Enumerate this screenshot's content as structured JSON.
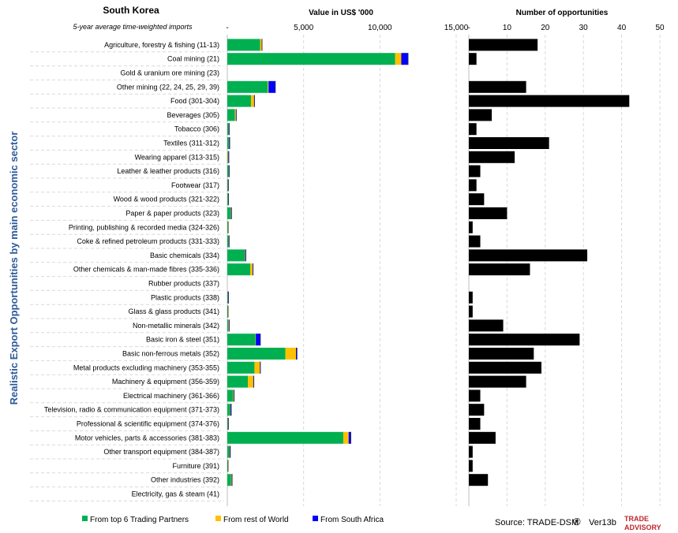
{
  "header": {
    "country": "South Korea",
    "subtitle": "5-year average time-weighted imports",
    "value_axis_title": "Value in US$ '000",
    "count_axis_title": "Number of opportunities",
    "y_axis_title": "Realistic Export Opportunities by main economic sector"
  },
  "legend": {
    "top6": "From top 6 Trading Partners",
    "row": "From rest of World",
    "sa": "From South Africa"
  },
  "footer": {
    "source": "Source: TRADE-DSM",
    "reg": "®",
    "version": "Ver13b",
    "logo_line1": "TRADE",
    "logo_line2": "ADVISORY"
  },
  "colors": {
    "top6": "#00b050",
    "row": "#ffc000",
    "sa": "#0000ff",
    "count": "#000000",
    "ylabel": "#2e5b9a",
    "logo_red": "#c0262d",
    "logo_grey": "#8c8c8c"
  },
  "chart_data": [
    {
      "type": "bar",
      "orientation": "horizontal",
      "stacked": true,
      "xlabel": "Value in US$ '000",
      "xlim": [
        0,
        15000
      ],
      "x_ticks": [
        "-",
        "5,000",
        "10,000",
        "15,000"
      ],
      "categories": [
        "Agriculture, forestry & fishing (11-13)",
        "Coal mining (21)",
        "Gold & uranium ore mining (23)",
        "Other mining (22, 24, 25, 29, 39)",
        "Food (301-304)",
        "Beverages (305)",
        "Tobacco (306)",
        "Textiles (311-312)",
        "Wearing apparel (313-315)",
        "Leather & leather products (316)",
        "Footwear (317)",
        "Wood & wood products (321-322)",
        "Paper & paper products (323)",
        "Printing, publishing & recorded media (324-326)",
        "Coke & refined petroleum products (331-333)",
        "Basic chemicals (334)",
        "Other chemicals & man-made fibres (335-336)",
        "Rubber products (337)",
        "Plastic products (338)",
        "Glass & glass products (341)",
        "Non-metallic minerals (342)",
        "Basic iron & steel (351)",
        "Basic non-ferrous metals (352)",
        "Metal products excluding machinery (353-355)",
        "Machinery & equipment (356-359)",
        "Electrical machinery (361-366)",
        "Television, radio & communication equipment (371-373)",
        "Professional & scientific equipment (374-376)",
        "Motor vehicles, parts & accessories (381-383)",
        "Other transport equipment (384-387)",
        "Furniture (391)",
        "Other industries (392)",
        "Electricity, gas & steam (41)"
      ],
      "series": [
        {
          "name": "From top 6 Trading Partners",
          "values": [
            2150,
            11000,
            0,
            2650,
            1550,
            500,
            80,
            100,
            30,
            80,
            30,
            40,
            220,
            30,
            80,
            1150,
            1500,
            0,
            30,
            30,
            60,
            1850,
            3800,
            1780,
            1350,
            380,
            180,
            30,
            7600,
            130,
            30,
            250,
            0
          ]
        },
        {
          "name": "From rest of World",
          "values": [
            100,
            400,
            0,
            50,
            200,
            60,
            10,
            10,
            40,
            10,
            10,
            10,
            20,
            30,
            10,
            20,
            150,
            0,
            10,
            20,
            40,
            20,
            700,
            350,
            350,
            30,
            20,
            10,
            350,
            20,
            20,
            30,
            0
          ]
        },
        {
          "name": "From South Africa",
          "values": [
            30,
            450,
            0,
            450,
            40,
            30,
            40,
            50,
            10,
            40,
            30,
            30,
            40,
            0,
            30,
            50,
            40,
            0,
            40,
            0,
            10,
            300,
            70,
            40,
            40,
            40,
            60,
            30,
            150,
            50,
            0,
            40,
            0
          ]
        }
      ]
    },
    {
      "type": "bar",
      "orientation": "horizontal",
      "xlabel": "Number of opportunities",
      "xlim": [
        0,
        50
      ],
      "x_ticks": [
        "-",
        "10",
        "20",
        "30",
        "40",
        "50"
      ],
      "series": [
        {
          "values": [
            18,
            2,
            0,
            15,
            42,
            6,
            2,
            21,
            12,
            3,
            2,
            4,
            10,
            1,
            3,
            31,
            16,
            0,
            1,
            1,
            9,
            29,
            17,
            19,
            15,
            3,
            4,
            3,
            7,
            1,
            1,
            5,
            0
          ]
        }
      ]
    }
  ]
}
